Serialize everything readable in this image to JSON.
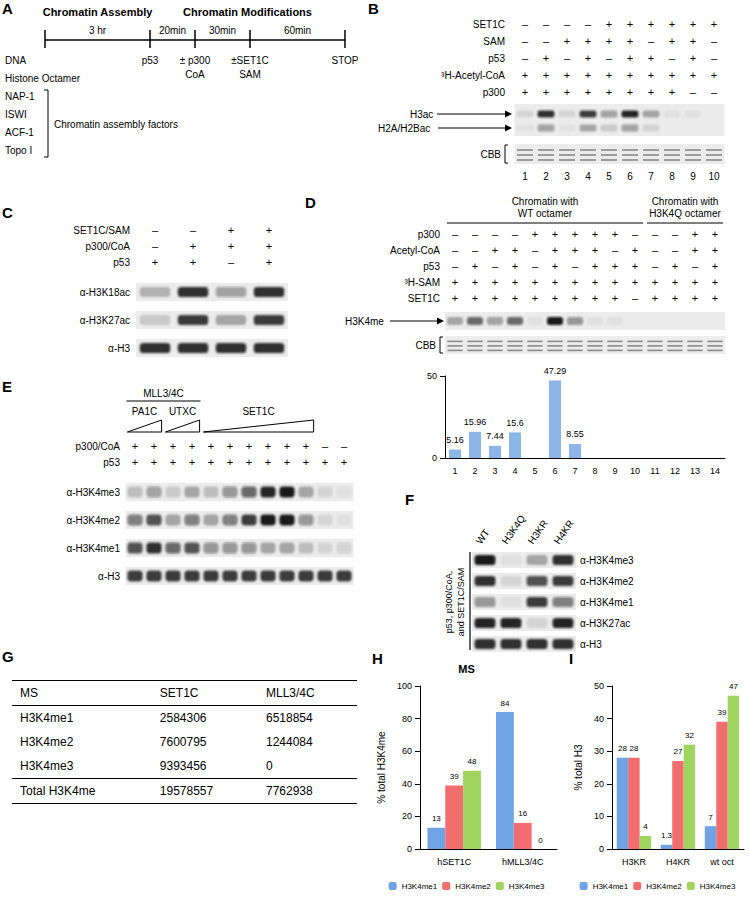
{
  "figure": {
    "A": {
      "label": "A",
      "header": [
        "Chromatin Assembly",
        "Chromatin Modifications"
      ],
      "durations": [
        "3 hr",
        "20min",
        "30min",
        "60min"
      ],
      "components": [
        "DNA",
        "Histone Octamer",
        "NAP-1",
        "ISWI",
        "ACF-1",
        "Topo I"
      ],
      "bracket_label": "Chromatin assembly factors",
      "additions": [
        [
          "p53"
        ],
        [
          "± p300",
          "CoA"
        ],
        [
          "±SET1C",
          "SAM"
        ],
        [
          "STOP"
        ]
      ]
    },
    "B": {
      "label": "B",
      "conditions": [
        {
          "name": "SET1C",
          "signs": [
            "–",
            "–",
            "–",
            "–",
            "+",
            "+",
            "+",
            "+",
            "+",
            "+"
          ]
        },
        {
          "name": "SAM",
          "signs": [
            "–",
            "–",
            "+",
            "+",
            "+",
            "+",
            "–",
            "+",
            "+",
            "–"
          ]
        },
        {
          "name": "p53",
          "signs": [
            "–",
            "+",
            "–",
            "+",
            "–",
            "+",
            "+",
            "–",
            "+",
            "–"
          ]
        },
        {
          "name": "³H-Acetyl-CoA",
          "signs": [
            "+",
            "+",
            "+",
            "+",
            "+",
            "+",
            "+",
            "+",
            "+",
            "+"
          ]
        },
        {
          "name": "p300",
          "signs": [
            "+",
            "+",
            "+",
            "+",
            "+",
            "+",
            "+",
            "+",
            "–",
            "–"
          ]
        }
      ],
      "blot": [
        {
          "name": "H3ac",
          "bands": [
            0.1,
            0.85,
            0.1,
            0.8,
            0.35,
            0.9,
            0.3,
            0.05,
            0.05,
            0
          ]
        },
        {
          "name": "H2A/H2Bac",
          "bands": [
            0.05,
            0.35,
            0.05,
            0.3,
            0.15,
            0.35,
            0.1,
            0,
            0,
            0
          ]
        }
      ],
      "stain": "CBB",
      "lanes": [
        1,
        2,
        3,
        4,
        5,
        6,
        7,
        8,
        9,
        10
      ]
    },
    "C": {
      "label": "C",
      "conditions": [
        {
          "name": "SET1C/SAM",
          "signs": [
            "–",
            "–",
            "+",
            "+"
          ]
        },
        {
          "name": "p300/CoA",
          "signs": [
            "–",
            "+",
            "+",
            "+"
          ]
        },
        {
          "name": "p53",
          "signs": [
            "+",
            "+",
            "–",
            "+"
          ]
        }
      ],
      "blot": [
        {
          "name": "α-H3K18ac",
          "bands": [
            0.25,
            0.85,
            0.35,
            0.85
          ]
        },
        {
          "name": "α-H3K27ac",
          "bands": [
            0.15,
            0.8,
            0.3,
            0.8
          ]
        },
        {
          "name": "α-H3",
          "bands": [
            0.85,
            0.85,
            0.85,
            0.85
          ]
        }
      ]
    },
    "D": {
      "label": "D",
      "groups": [
        "Chromatin with WT octamer",
        "Chromatin with WT octamer",
        "Chromatin with WT octamer",
        "Chromatin with WT octamer",
        "Chromatin with WT octamer",
        "Chromatin with WT octamer",
        "Chromatin with WT octamer",
        "Chromatin with WT octamer",
        "Chromatin with WT octamer",
        "Chromatin with WT octamer",
        "Chromatin with H3K4Q octamer",
        "Chromatin with H3K4Q octamer",
        "Chromatin with H3K4Q octamer",
        "Chromatin with H3K4Q octamer"
      ],
      "conditions": [
        {
          "name": "p300",
          "signs": [
            "–",
            "–",
            "–",
            "–",
            "+",
            "+",
            "+",
            "+",
            "+",
            "–",
            "–",
            "–",
            "+",
            "+"
          ]
        },
        {
          "name": "Acetyl-CoA",
          "signs": [
            "–",
            "–",
            "+",
            "+",
            "–",
            "+",
            "+",
            "+",
            "–",
            "+",
            "–",
            "–",
            "+",
            "+"
          ]
        },
        {
          "name": "p53",
          "signs": [
            "–",
            "+",
            "–",
            "+",
            "–",
            "+",
            "–",
            "+",
            "+",
            "+",
            "–",
            "+",
            "–",
            "+"
          ]
        },
        {
          "name": "³H-SAM",
          "signs": [
            "+",
            "+",
            "+",
            "+",
            "+",
            "+",
            "+",
            "+",
            "+",
            "+",
            "+",
            "+",
            "+",
            "+"
          ]
        },
        {
          "name": "SET1C",
          "signs": [
            "+",
            "+",
            "+",
            "+",
            "+",
            "+",
            "+",
            "+",
            "+",
            "–",
            "+",
            "+",
            "+",
            "+"
          ]
        }
      ],
      "blot": [
        {
          "name": "H3K4me",
          "bands": [
            0.3,
            0.6,
            0.35,
            0.6,
            0.05,
            0.95,
            0.4,
            0.05,
            0.05,
            0,
            0,
            0,
            0,
            0
          ]
        }
      ],
      "stain": "CBB"
    },
    "E": {
      "label": "E",
      "complex": [
        "MLL3/4C",
        "MLL3/4C",
        "MLL3/4C",
        "MLL3/4C",
        null,
        null,
        null,
        null,
        null,
        null,
        null,
        null
      ],
      "titration": [
        "PA1C",
        "PA1C",
        "UTXC",
        "UTXC",
        "SET1C",
        "SET1C",
        "SET1C",
        "SET1C",
        "SET1C",
        "SET1C",
        null,
        null
      ],
      "conditions": [
        {
          "name": "p300/CoA",
          "signs": [
            "+",
            "+",
            "+",
            "+",
            "+",
            "+",
            "+",
            "+",
            "+",
            "+",
            "–",
            "–"
          ]
        },
        {
          "name": "p53",
          "signs": [
            "+",
            "+",
            "+",
            "+",
            "+",
            "+",
            "+",
            "+",
            "+",
            "+",
            "+",
            "+"
          ]
        }
      ],
      "blot": [
        {
          "name": "α-H3K4me3",
          "bands": [
            0.2,
            0.35,
            0.15,
            0.3,
            0.2,
            0.4,
            0.6,
            0.9,
            0.95,
            0.3,
            0.1,
            0.05
          ]
        },
        {
          "name": "α-H3K4me2",
          "bands": [
            0.5,
            0.7,
            0.3,
            0.5,
            0.3,
            0.5,
            0.8,
            0.95,
            0.95,
            0.4,
            0.1,
            0.05
          ]
        },
        {
          "name": "α-H3K4me1",
          "bands": [
            0.7,
            0.85,
            0.6,
            0.7,
            0.4,
            0.4,
            0.4,
            0.3,
            0.3,
            0.2,
            0.1,
            0.1
          ]
        },
        {
          "name": "α-H3",
          "bands": [
            0.8,
            0.8,
            0.8,
            0.8,
            0.8,
            0.8,
            0.8,
            0.8,
            0.8,
            0.8,
            0.8,
            0.8
          ]
        }
      ]
    },
    "F": {
      "label": "F",
      "columns": [
        "WT",
        "H3K4Q",
        "H3KR",
        "H4KR"
      ],
      "treatment": "p53, p300/CoA, and SET1C/SAM",
      "blot": [
        {
          "name": "α-H3K4me3",
          "bands": [
            0.95,
            0.05,
            0.3,
            0.85
          ]
        },
        {
          "name": "α-H3K4me2",
          "bands": [
            0.85,
            0.1,
            0.7,
            0.8
          ]
        },
        {
          "name": "α-H3K4me1",
          "bands": [
            0.4,
            0.05,
            0.8,
            0.5
          ]
        },
        {
          "name": "α-H3K27ac",
          "bands": [
            0.9,
            0.9,
            0.1,
            0.9
          ]
        },
        {
          "name": "α-H3",
          "bands": [
            0.85,
            0.85,
            0.85,
            0.85
          ]
        }
      ]
    },
    "G": {
      "label": "G",
      "header": [
        "MS",
        "SET1C",
        "MLL3/4C"
      ],
      "rows": [
        [
          "H3K4me1",
          2584306,
          6518854
        ],
        [
          "H3K4me2",
          7600795,
          1244084
        ],
        [
          "H3K4me3",
          9393456,
          0
        ],
        [
          "Total H3K4me",
          19578557,
          7762938
        ]
      ]
    }
  },
  "chart_data": [
    {
      "type": "bar",
      "categories": [
        "1",
        "2",
        "3",
        "4",
        "5",
        "6",
        "7",
        "8",
        "9",
        "10",
        "11",
        "12",
        "13",
        "14"
      ],
      "values": [
        5.16,
        15.96,
        7.44,
        15.6,
        null,
        47.29,
        8.55,
        null,
        null,
        null,
        null,
        null,
        null,
        null
      ],
      "color": "#8cb6e8",
      "ylim": [
        0,
        50
      ],
      "yticks": [
        0,
        50
      ],
      "grid": false,
      "data_labels": true
    },
    {
      "type": "bar",
      "panel": "H",
      "title": "MS",
      "y_label": "% total H3K4me",
      "categories": [
        "hSET1C",
        "hMLL3/4C"
      ],
      "series": [
        {
          "name": "H3K4me1",
          "color": "#6fa3e4",
          "values": [
            13,
            84
          ]
        },
        {
          "name": "H3K4me2",
          "color": "#f26d6d",
          "values": [
            39,
            16
          ]
        },
        {
          "name": "H3K4me3",
          "color": "#9fd45f",
          "values": [
            48,
            0
          ]
        }
      ],
      "ylim": [
        0,
        100
      ],
      "yticks": [
        0,
        20,
        40,
        60,
        80,
        100
      ],
      "grid": false,
      "data_labels": true,
      "legend": "bottom"
    },
    {
      "type": "bar",
      "panel": "I",
      "y_label": "% total H3",
      "categories": [
        "H3KR",
        "H4KR",
        "wt oct"
      ],
      "series": [
        {
          "name": "H3K4me1",
          "color": "#6fa3e4",
          "values": [
            28,
            1.3,
            7
          ]
        },
        {
          "name": "H3K4me2",
          "color": "#f26d6d",
          "values": [
            28,
            27,
            39
          ]
        },
        {
          "name": "H3K4me3",
          "color": "#9fd45f",
          "values": [
            4,
            32,
            47
          ]
        }
      ],
      "ylim": [
        0,
        50
      ],
      "yticks": [
        0,
        10,
        20,
        30,
        40,
        50
      ],
      "grid": false,
      "data_labels": true,
      "legend": "bottom"
    }
  ]
}
